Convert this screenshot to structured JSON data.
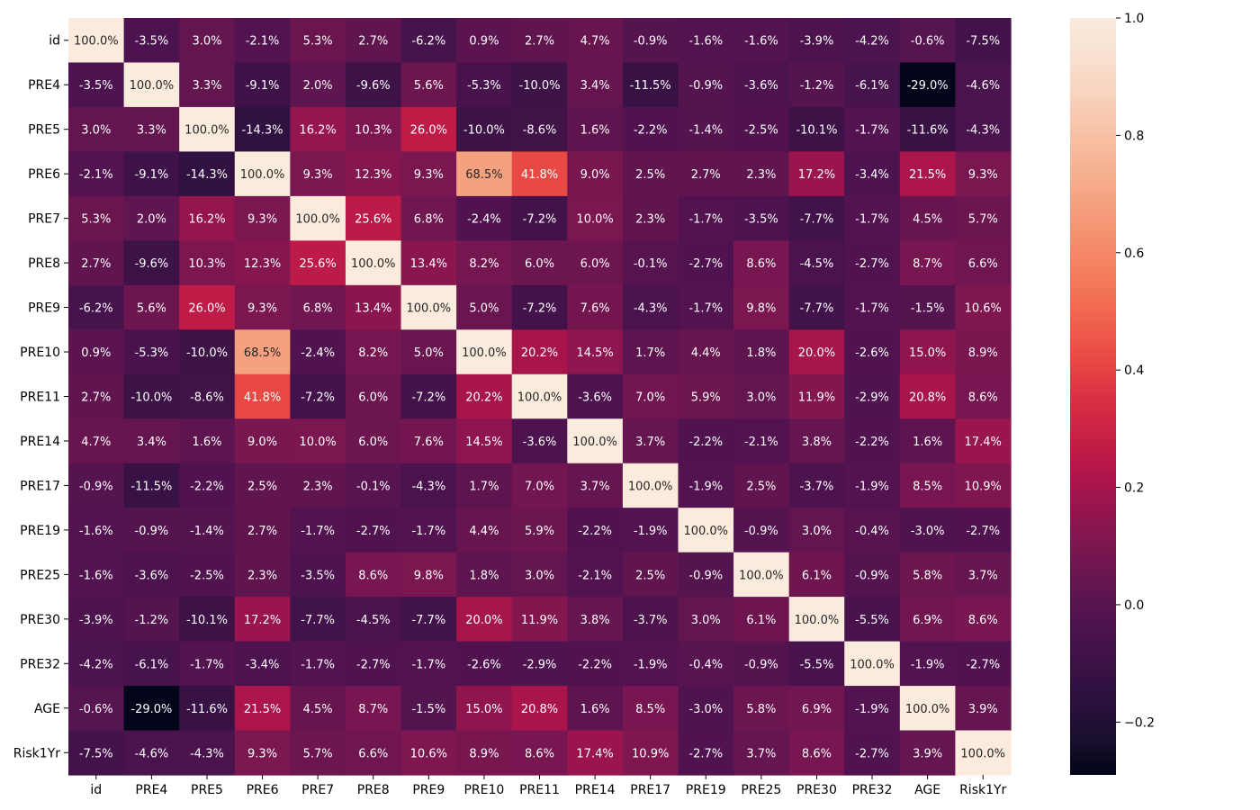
{
  "chart_data": {
    "type": "heatmap",
    "labels": [
      "id",
      "PRE4",
      "PRE5",
      "PRE6",
      "PRE7",
      "PRE8",
      "PRE9",
      "PRE10",
      "PRE11",
      "PRE14",
      "PRE17",
      "PRE19",
      "PRE25",
      "PRE30",
      "PRE32",
      "AGE",
      "Risk1Yr"
    ],
    "values": [
      [
        1.0,
        -0.035,
        0.03,
        -0.021,
        0.053,
        0.027,
        -0.062,
        0.009,
        0.027,
        0.047,
        -0.009,
        -0.016,
        -0.016,
        -0.039,
        -0.042,
        -0.006,
        -0.075
      ],
      [
        -0.035,
        1.0,
        0.033,
        -0.091,
        0.02,
        -0.096,
        0.056,
        -0.053,
        -0.1,
        0.034,
        -0.115,
        -0.009,
        -0.036,
        -0.012,
        -0.061,
        -0.29,
        -0.046
      ],
      [
        0.03,
        0.033,
        1.0,
        -0.143,
        0.162,
        0.103,
        0.26,
        -0.1,
        -0.086,
        0.016,
        -0.022,
        -0.014,
        -0.025,
        -0.101,
        -0.017,
        -0.116,
        -0.043
      ],
      [
        -0.021,
        -0.091,
        -0.143,
        1.0,
        0.093,
        0.123,
        0.093,
        0.685,
        0.418,
        0.09,
        0.025,
        0.027,
        0.023,
        0.172,
        -0.034,
        0.215,
        0.093
      ],
      [
        0.053,
        0.02,
        0.162,
        0.093,
        1.0,
        0.256,
        0.068,
        -0.024,
        -0.072,
        0.1,
        0.023,
        -0.017,
        -0.035,
        -0.077,
        -0.017,
        0.045,
        0.057
      ],
      [
        0.027,
        -0.096,
        0.103,
        0.123,
        0.256,
        1.0,
        0.134,
        0.082,
        0.06,
        0.06,
        -0.001,
        -0.027,
        0.086,
        -0.045,
        -0.027,
        0.087,
        0.066
      ],
      [
        -0.062,
        0.056,
        0.26,
        0.093,
        0.068,
        0.134,
        1.0,
        0.05,
        -0.072,
        0.076,
        -0.043,
        -0.017,
        0.098,
        -0.077,
        -0.017,
        -0.015,
        0.106
      ],
      [
        0.009,
        -0.053,
        -0.1,
        0.685,
        -0.024,
        0.082,
        0.05,
        1.0,
        0.202,
        0.145,
        0.017,
        0.044,
        0.018,
        0.2,
        -0.026,
        0.15,
        0.089
      ],
      [
        0.027,
        -0.1,
        -0.086,
        0.418,
        -0.072,
        0.06,
        -0.072,
        0.202,
        1.0,
        -0.036,
        0.07,
        0.059,
        0.03,
        0.119,
        -0.029,
        0.208,
        0.086
      ],
      [
        0.047,
        0.034,
        0.016,
        0.09,
        0.1,
        0.06,
        0.076,
        0.145,
        -0.036,
        1.0,
        0.037,
        -0.022,
        -0.021,
        0.038,
        -0.022,
        0.016,
        0.174
      ],
      [
        -0.009,
        -0.115,
        -0.022,
        0.025,
        0.023,
        -0.001,
        -0.043,
        0.017,
        0.07,
        0.037,
        1.0,
        -0.019,
        0.025,
        -0.037,
        -0.019,
        0.085,
        0.109
      ],
      [
        -0.016,
        -0.009,
        -0.014,
        0.027,
        -0.017,
        -0.027,
        -0.017,
        0.044,
        0.059,
        -0.022,
        -0.019,
        1.0,
        -0.009,
        0.03,
        -0.004,
        -0.03,
        -0.027
      ],
      [
        -0.016,
        -0.036,
        -0.025,
        0.023,
        -0.035,
        0.086,
        0.098,
        0.018,
        0.03,
        -0.021,
        0.025,
        -0.009,
        1.0,
        0.061,
        -0.009,
        0.058,
        0.037
      ],
      [
        -0.039,
        -0.012,
        -0.101,
        0.172,
        -0.077,
        -0.045,
        -0.077,
        0.2,
        0.119,
        0.038,
        -0.037,
        0.03,
        0.061,
        1.0,
        -0.055,
        0.069,
        0.086
      ],
      [
        -0.042,
        -0.061,
        -0.017,
        -0.034,
        -0.017,
        -0.027,
        -0.017,
        -0.026,
        -0.029,
        -0.022,
        -0.019,
        -0.004,
        -0.009,
        -0.055,
        1.0,
        -0.019,
        -0.027
      ],
      [
        -0.006,
        -0.29,
        -0.116,
        0.215,
        0.045,
        0.087,
        -0.015,
        0.15,
        0.208,
        0.016,
        0.085,
        -0.03,
        0.058,
        0.069,
        -0.019,
        1.0,
        0.039
      ],
      [
        -0.075,
        -0.046,
        -0.043,
        0.093,
        0.057,
        0.066,
        0.106,
        0.089,
        0.086,
        0.174,
        0.109,
        -0.027,
        0.037,
        0.086,
        -0.027,
        0.039,
        1.0
      ]
    ],
    "cell_labels": [
      [
        "100.0%",
        "-3.5%",
        "3.0%",
        "-2.1%",
        "5.3%",
        "2.7%",
        "-6.2%",
        "0.9%",
        "2.7%",
        "4.7%",
        "-0.9%",
        "-1.6%",
        "-1.6%",
        "-3.9%",
        "-4.2%",
        "-0.6%",
        "-7.5%"
      ],
      [
        "-3.5%",
        "100.0%",
        "3.3%",
        "-9.1%",
        "2.0%",
        "-9.6%",
        "5.6%",
        "-5.3%",
        "-10.0%",
        "3.4%",
        "-11.5%",
        "-0.9%",
        "-3.6%",
        "-1.2%",
        "-6.1%",
        "-29.0%",
        "-4.6%"
      ],
      [
        "3.0%",
        "3.3%",
        "100.0%",
        "-14.3%",
        "16.2%",
        "10.3%",
        "26.0%",
        "-10.0%",
        "-8.6%",
        "1.6%",
        "-2.2%",
        "-1.4%",
        "-2.5%",
        "-10.1%",
        "-1.7%",
        "-11.6%",
        "-4.3%"
      ],
      [
        "-2.1%",
        "-9.1%",
        "-14.3%",
        "100.0%",
        "9.3%",
        "12.3%",
        "9.3%",
        "68.5%",
        "41.8%",
        "9.0%",
        "2.5%",
        "2.7%",
        "2.3%",
        "17.2%",
        "-3.4%",
        "21.5%",
        "9.3%"
      ],
      [
        "5.3%",
        "2.0%",
        "16.2%",
        "9.3%",
        "100.0%",
        "25.6%",
        "6.8%",
        "-2.4%",
        "-7.2%",
        "10.0%",
        "2.3%",
        "-1.7%",
        "-3.5%",
        "-7.7%",
        "-1.7%",
        "4.5%",
        "5.7%"
      ],
      [
        "2.7%",
        "-9.6%",
        "10.3%",
        "12.3%",
        "25.6%",
        "100.0%",
        "13.4%",
        "8.2%",
        "6.0%",
        "6.0%",
        "-0.1%",
        "-2.7%",
        "8.6%",
        "-4.5%",
        "-2.7%",
        "8.7%",
        "6.6%"
      ],
      [
        "-6.2%",
        "5.6%",
        "26.0%",
        "9.3%",
        "6.8%",
        "13.4%",
        "100.0%",
        "5.0%",
        "-7.2%",
        "7.6%",
        "-4.3%",
        "-1.7%",
        "9.8%",
        "-7.7%",
        "-1.7%",
        "-1.5%",
        "10.6%"
      ],
      [
        "0.9%",
        "-5.3%",
        "-10.0%",
        "68.5%",
        "-2.4%",
        "8.2%",
        "5.0%",
        "100.0%",
        "20.2%",
        "14.5%",
        "1.7%",
        "4.4%",
        "1.8%",
        "20.0%",
        "-2.6%",
        "15.0%",
        "8.9%"
      ],
      [
        "2.7%",
        "-10.0%",
        "-8.6%",
        "41.8%",
        "-7.2%",
        "6.0%",
        "-7.2%",
        "20.2%",
        "100.0%",
        "-3.6%",
        "7.0%",
        "5.9%",
        "3.0%",
        "11.9%",
        "-2.9%",
        "20.8%",
        "8.6%"
      ],
      [
        "4.7%",
        "3.4%",
        "1.6%",
        "9.0%",
        "10.0%",
        "6.0%",
        "7.6%",
        "14.5%",
        "-3.6%",
        "100.0%",
        "3.7%",
        "-2.2%",
        "-2.1%",
        "3.8%",
        "-2.2%",
        "1.6%",
        "17.4%"
      ],
      [
        "-0.9%",
        "-11.5%",
        "-2.2%",
        "2.5%",
        "2.3%",
        "-0.1%",
        "-4.3%",
        "1.7%",
        "7.0%",
        "3.7%",
        "100.0%",
        "-1.9%",
        "2.5%",
        "-3.7%",
        "-1.9%",
        "8.5%",
        "10.9%"
      ],
      [
        "-1.6%",
        "-0.9%",
        "-1.4%",
        "2.7%",
        "-1.7%",
        "-2.7%",
        "-1.7%",
        "4.4%",
        "5.9%",
        "-2.2%",
        "-1.9%",
        "100.0%",
        "-0.9%",
        "3.0%",
        "-0.4%",
        "-3.0%",
        "-2.7%"
      ],
      [
        "-1.6%",
        "-3.6%",
        "-2.5%",
        "2.3%",
        "-3.5%",
        "8.6%",
        "9.8%",
        "1.8%",
        "3.0%",
        "-2.1%",
        "2.5%",
        "-0.9%",
        "100.0%",
        "6.1%",
        "-0.9%",
        "5.8%",
        "3.7%"
      ],
      [
        "-3.9%",
        "-1.2%",
        "-10.1%",
        "17.2%",
        "-7.7%",
        "-4.5%",
        "-7.7%",
        "20.0%",
        "11.9%",
        "3.8%",
        "-3.7%",
        "3.0%",
        "6.1%",
        "100.0%",
        "-5.5%",
        "6.9%",
        "8.6%"
      ],
      [
        "-4.2%",
        "-6.1%",
        "-1.7%",
        "-3.4%",
        "-1.7%",
        "-2.7%",
        "-1.7%",
        "-2.6%",
        "-2.9%",
        "-2.2%",
        "-1.9%",
        "-0.4%",
        "-0.9%",
        "-5.5%",
        "100.0%",
        "-1.9%",
        "-2.7%"
      ],
      [
        "-0.6%",
        "-29.0%",
        "-11.6%",
        "21.5%",
        "4.5%",
        "8.7%",
        "-1.5%",
        "15.0%",
        "20.8%",
        "1.6%",
        "8.5%",
        "-3.0%",
        "5.8%",
        "6.9%",
        "-1.9%",
        "100.0%",
        "3.9%"
      ],
      [
        "-7.5%",
        "-4.6%",
        "-4.3%",
        "9.3%",
        "5.7%",
        "6.6%",
        "10.6%",
        "8.9%",
        "8.6%",
        "17.4%",
        "10.9%",
        "-2.7%",
        "3.7%",
        "8.6%",
        "-2.7%",
        "3.9%",
        "100.0%"
      ]
    ],
    "colorbar": {
      "vmin": -0.29,
      "vmax": 1.0,
      "ticks": [
        1.0,
        0.8,
        0.6,
        0.4,
        0.2,
        0.0,
        -0.2
      ],
      "tick_labels": [
        "1.0",
        "0.8",
        "0.6",
        "0.4",
        "0.2",
        "0.0",
        "−0.2"
      ],
      "colormap": "rocket"
    }
  }
}
